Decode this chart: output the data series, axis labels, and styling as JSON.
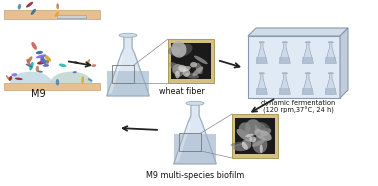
{
  "background_color": "#ffffff",
  "labels": {
    "m9": "M9",
    "wheat_fiber": "wheat fiber",
    "dynamic_fermentation": "dynamic fermentation\n(120 rpm,37°C, 24 h)",
    "biofilm": "M9 multi-species biofilm"
  },
  "bacteria_colors": [
    "#8B1A1A",
    "#C07840",
    "#4682B4",
    "#2E6B8B",
    "#DAA520",
    "#6A5ACD",
    "#CD5C5C",
    "#20B2AA",
    "#7B68EE"
  ],
  "flask_outline": "#9AAFC0",
  "arrow_color": "#222222"
}
